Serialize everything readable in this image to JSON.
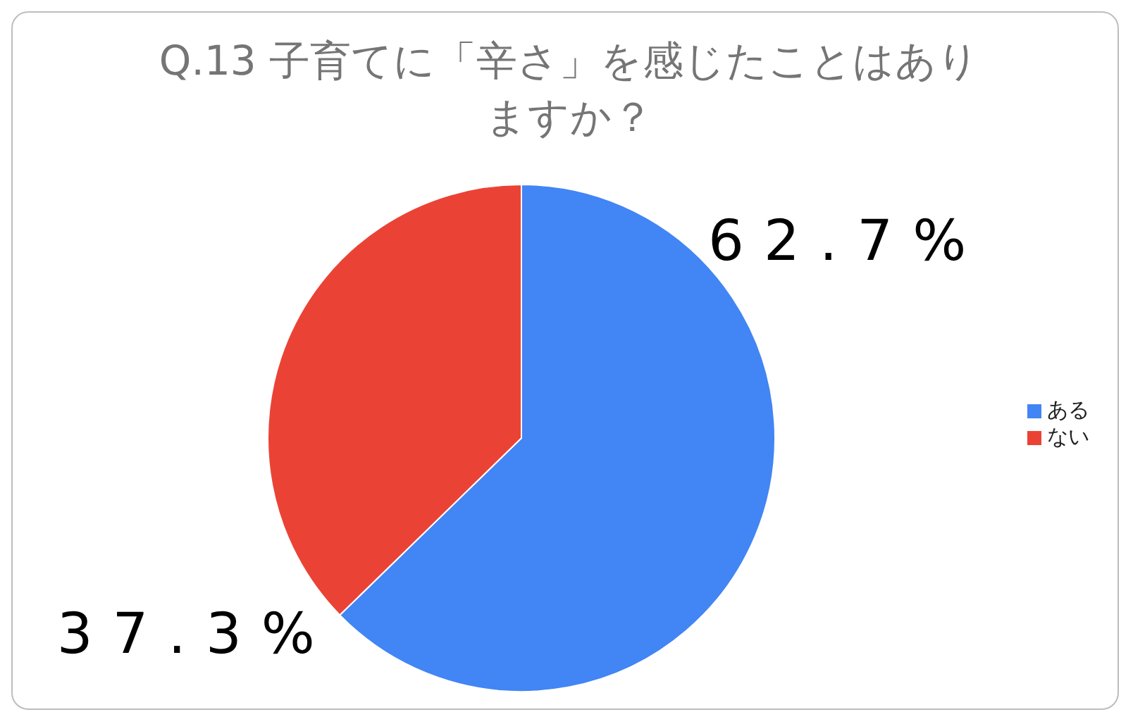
{
  "chart_data": {
    "type": "pie",
    "title": "Q.13 子育てに「辛さ」を感じたことはありますか？",
    "categories": [
      "ある",
      "ない"
    ],
    "values": [
      62.7,
      37.3
    ],
    "colors": [
      "#4285f4",
      "#ea4335"
    ],
    "value_labels": [
      "62.7%",
      "37.3%"
    ],
    "legend": "right"
  }
}
